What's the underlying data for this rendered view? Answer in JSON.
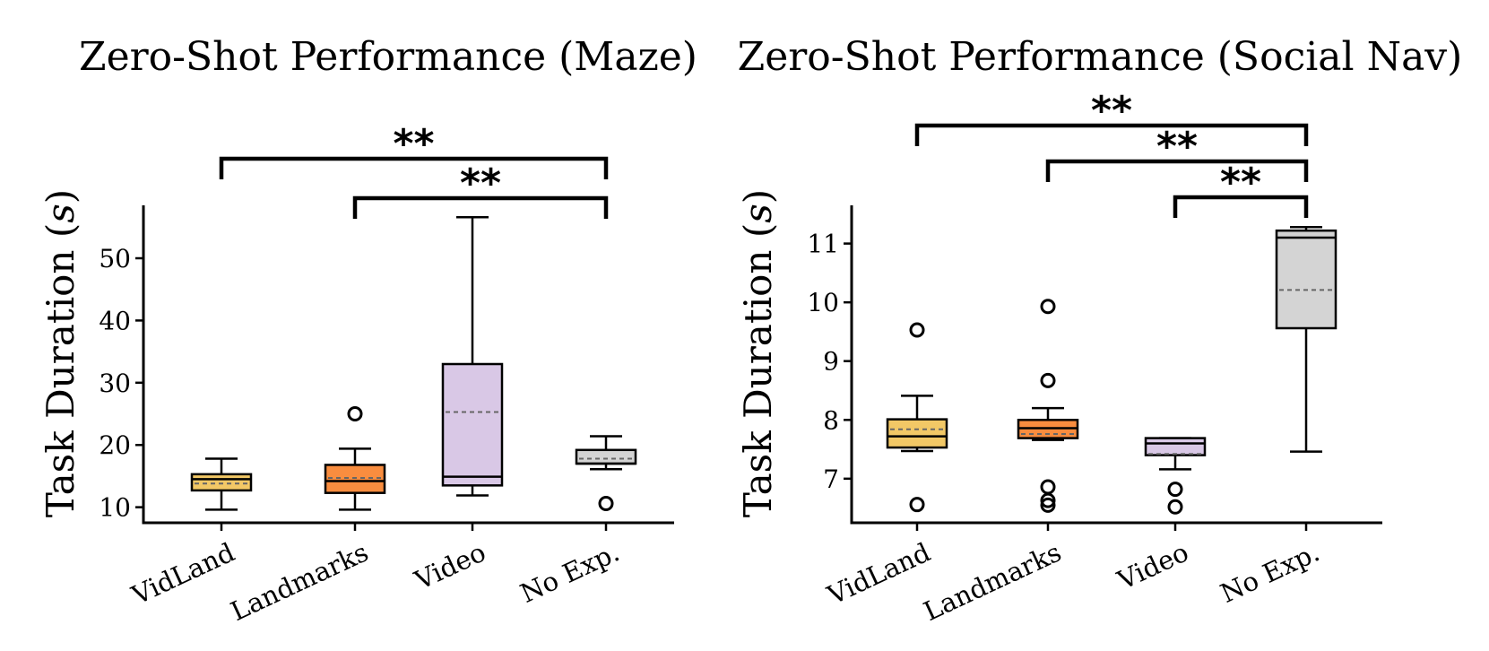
{
  "chart_data": [
    {
      "type": "box",
      "title": "Zero-Shot Performance (Maze)",
      "ylabel": "Task Duration (s)",
      "ylabel_main": "Task Duration (",
      "ylabel_var": "s",
      "ylabel_close": ")",
      "xlabel": "",
      "ylim": [
        7.5,
        58.5
      ],
      "yticks": [
        10,
        20,
        30,
        40,
        50
      ],
      "categories": [
        "VidLand",
        "Landmarks",
        "Video",
        "No Exp."
      ],
      "boxes": [
        {
          "name": "VidLand",
          "color": "#f2c866",
          "whisker_low": 9.6,
          "q1": 12.7,
          "median": 14.5,
          "mean": 13.8,
          "q3": 15.3,
          "whisker_high": 17.8,
          "outliers": []
        },
        {
          "name": "Landmarks",
          "color": "#f98d3f",
          "whisker_low": 9.6,
          "q1": 12.3,
          "median": 14.2,
          "mean": 14.7,
          "q3": 16.8,
          "whisker_high": 19.4,
          "outliers": [
            25.0
          ]
        },
        {
          "name": "Video",
          "color": "#d9c8e6",
          "whisker_low": 11.9,
          "q1": 13.5,
          "median": 14.9,
          "mean": 25.3,
          "q3": 33.0,
          "whisker_high": 56.6,
          "outliers": []
        },
        {
          "name": "No Exp.",
          "color": "#d4d4d4",
          "whisker_low": 16.1,
          "q1": 17.0,
          "median": 17.0,
          "mean": 17.8,
          "q3": 19.2,
          "whisker_high": 21.4,
          "outliers": [
            10.6
          ]
        }
      ],
      "significance": [
        {
          "from": "VidLand",
          "to": "No Exp.",
          "label": "**"
        },
        {
          "from": "Landmarks",
          "to": "No Exp.",
          "label": "**"
        }
      ]
    },
    {
      "type": "box",
      "title": "Zero-Shot Performance (Social Nav)",
      "ylabel": "Task Duration (s)",
      "ylabel_main": "Task Duration (",
      "ylabel_var": "s",
      "ylabel_close": ")",
      "xlabel": "",
      "ylim": [
        6.25,
        11.65
      ],
      "yticks": [
        7,
        8,
        9,
        10,
        11
      ],
      "categories": [
        "VidLand",
        "Landmarks",
        "Video",
        "No Exp."
      ],
      "boxes": [
        {
          "name": "VidLand",
          "color": "#f2c866",
          "whisker_low": 7.47,
          "q1": 7.53,
          "median": 7.72,
          "mean": 7.84,
          "q3": 8.01,
          "whisker_high": 8.41,
          "outliers": [
            9.53,
            6.56
          ]
        },
        {
          "name": "Landmarks",
          "color": "#f98d3f",
          "whisker_low": 7.66,
          "q1": 7.69,
          "median": 7.86,
          "mean": 7.76,
          "q3": 8.0,
          "whisker_high": 8.2,
          "outliers": [
            9.93,
            8.67,
            6.86,
            6.63,
            6.55
          ]
        },
        {
          "name": "Video",
          "color": "#d9c8e6",
          "whisker_low": 7.16,
          "q1": 7.4,
          "median": 7.6,
          "mean": 7.42,
          "q3": 7.69,
          "whisker_high": 7.69,
          "outliers": [
            6.82,
            6.52
          ]
        },
        {
          "name": "No Exp.",
          "color": "#d4d4d4",
          "whisker_low": 7.46,
          "q1": 9.56,
          "median": 11.1,
          "mean": 10.21,
          "q3": 11.22,
          "whisker_high": 11.28,
          "outliers": []
        }
      ],
      "significance": [
        {
          "from": "VidLand",
          "to": "No Exp.",
          "label": "**"
        },
        {
          "from": "Landmarks",
          "to": "No Exp.",
          "label": "**"
        },
        {
          "from": "Video",
          "to": "No Exp.",
          "label": "**"
        }
      ]
    }
  ]
}
